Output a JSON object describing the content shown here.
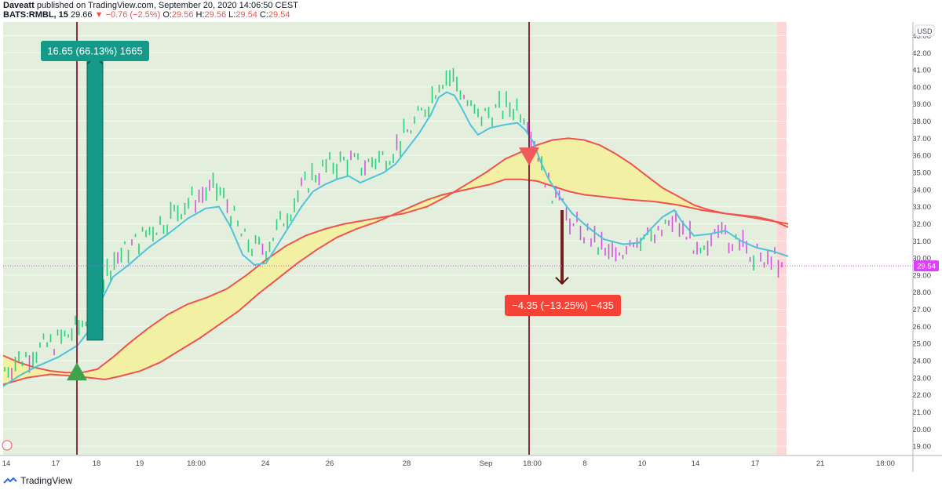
{
  "header": {
    "publisher": "Daveatt",
    "published_text": "published on TradingView.com, September 20, 2020 14:06:50 CEST",
    "symbol": "BATS:RMBL, 15",
    "last": "29.66",
    "change": "−0.76 (−2.5%)",
    "o_label": "O:",
    "o_value": "29.56",
    "h_label": "H:",
    "h_value": "29.56",
    "l_label": "L:",
    "l_value": "29.54",
    "c_label": "C:",
    "c_value": "29.54"
  },
  "brand": "TradingView",
  "colors": {
    "background_zone_long": "#e3efdc",
    "background_zone_short_end": "#ffd6d6",
    "kumo_fill": "#f5f099",
    "kumo_line": "#ef5350",
    "fast_line": "#4fc3dc",
    "up_bar": "#26d07c",
    "down_bar": "#d452e0",
    "long_label": "#159a8a",
    "short_label": "#f44336",
    "vertical_line": "#8b2b4a",
    "price_tag": "#e040fb"
  },
  "chart_data": {
    "type": "line",
    "currency": "USD",
    "ylim": [
      18.5,
      43.8
    ],
    "y_ticks": [
      "19.00",
      "20.00",
      "21.00",
      "22.00",
      "23.00",
      "24.00",
      "25.00",
      "26.00",
      "27.00",
      "28.00",
      "29.00",
      "30.00",
      "31.00",
      "32.00",
      "33.00",
      "34.00",
      "35.00",
      "36.00",
      "37.00",
      "38.00",
      "39.00",
      "40.00",
      "41.00",
      "42.00",
      "43.00"
    ],
    "x_ticks": [
      "14",
      "17",
      "18",
      "19",
      "18:00",
      "24",
      "26",
      "28",
      "Sep",
      "18:00",
      "8",
      "10",
      "14",
      "17",
      "21",
      "18:00"
    ],
    "last_price": "29.54",
    "series": [
      {
        "values": [
          [
            0,
            22.5
          ],
          [
            20,
            23.1
          ],
          [
            40,
            23.6
          ],
          [
            70,
            24.2
          ],
          [
            95,
            24.9
          ],
          [
            110,
            25.8
          ],
          [
            125,
            27.5
          ],
          [
            140,
            28.9
          ],
          [
            160,
            29.6
          ],
          [
            185,
            30.6
          ],
          [
            210,
            31.4
          ],
          [
            235,
            32.3
          ],
          [
            258,
            32.9
          ],
          [
            275,
            33.0
          ],
          [
            290,
            31.8
          ],
          [
            305,
            30.2
          ],
          [
            320,
            29.6
          ],
          [
            335,
            29.7
          ],
          [
            350,
            30.8
          ],
          [
            365,
            31.9
          ],
          [
            380,
            33.0
          ],
          [
            395,
            33.9
          ],
          [
            410,
            34.3
          ],
          [
            425,
            34.6
          ],
          [
            440,
            34.8
          ],
          [
            455,
            34.4
          ],
          [
            470,
            34.7
          ],
          [
            485,
            35.0
          ],
          [
            500,
            35.5
          ],
          [
            515,
            36.4
          ],
          [
            530,
            37.3
          ],
          [
            545,
            38.4
          ],
          [
            555,
            39.4
          ],
          [
            565,
            39.7
          ],
          [
            575,
            39.5
          ],
          [
            585,
            38.7
          ],
          [
            595,
            37.8
          ],
          [
            605,
            37.2
          ],
          [
            620,
            37.6
          ],
          [
            640,
            37.8
          ],
          [
            655,
            37.9
          ],
          [
            665,
            37.5
          ],
          [
            675,
            36.8
          ],
          [
            685,
            35.6
          ],
          [
            695,
            34.6
          ],
          [
            710,
            33.5
          ],
          [
            725,
            32.6
          ],
          [
            745,
            31.8
          ],
          [
            765,
            31.1
          ],
          [
            790,
            30.8
          ],
          [
            810,
            30.9
          ],
          [
            825,
            31.7
          ],
          [
            840,
            32.4
          ],
          [
            855,
            32.8
          ],
          [
            865,
            32.1
          ],
          [
            880,
            31.3
          ],
          [
            900,
            31.4
          ],
          [
            920,
            31.6
          ],
          [
            940,
            31.0
          ],
          [
            960,
            30.6
          ],
          [
            980,
            30.4
          ],
          [
            1000,
            30.1
          ]
        ]
      },
      {
        "values": [
          [
            0,
            22.6
          ],
          [
            30,
            23.0
          ],
          [
            60,
            23.2
          ],
          [
            90,
            23.1
          ],
          [
            110,
            23.0
          ],
          [
            130,
            22.9
          ],
          [
            150,
            23.1
          ],
          [
            175,
            23.4
          ],
          [
            200,
            23.9
          ],
          [
            225,
            24.6
          ],
          [
            250,
            25.3
          ],
          [
            275,
            26.1
          ],
          [
            300,
            26.9
          ],
          [
            325,
            27.9
          ],
          [
            350,
            28.8
          ],
          [
            375,
            29.7
          ],
          [
            400,
            30.5
          ],
          [
            425,
            31.2
          ],
          [
            450,
            31.7
          ],
          [
            475,
            32.1
          ],
          [
            500,
            32.6
          ],
          [
            520,
            33.0
          ],
          [
            540,
            33.4
          ],
          [
            560,
            33.7
          ],
          [
            580,
            33.9
          ],
          [
            600,
            34.1
          ],
          [
            620,
            34.3
          ],
          [
            640,
            34.6
          ],
          [
            660,
            34.6
          ],
          [
            680,
            34.5
          ],
          [
            700,
            34.2
          ],
          [
            720,
            33.9
          ],
          [
            740,
            33.7
          ],
          [
            760,
            33.6
          ],
          [
            780,
            33.5
          ],
          [
            800,
            33.4
          ],
          [
            830,
            33.3
          ],
          [
            860,
            33.1
          ],
          [
            890,
            32.8
          ],
          [
            920,
            32.6
          ],
          [
            950,
            32.4
          ],
          [
            975,
            32.2
          ],
          [
            1000,
            32.0
          ]
        ]
      },
      {
        "values": [
          [
            0,
            24.3
          ],
          [
            20,
            23.9
          ],
          [
            40,
            23.6
          ],
          [
            60,
            23.4
          ],
          [
            80,
            23.3
          ],
          [
            100,
            23.3
          ],
          [
            120,
            23.5
          ],
          [
            140,
            24.2
          ],
          [
            160,
            25.0
          ],
          [
            185,
            25.9
          ],
          [
            210,
            26.7
          ],
          [
            235,
            27.3
          ],
          [
            260,
            27.7
          ],
          [
            285,
            28.2
          ],
          [
            310,
            29.0
          ],
          [
            335,
            29.9
          ],
          [
            360,
            30.7
          ],
          [
            385,
            31.3
          ],
          [
            410,
            31.7
          ],
          [
            435,
            32.0
          ],
          [
            460,
            32.2
          ],
          [
            485,
            32.4
          ],
          [
            510,
            32.6
          ],
          [
            540,
            33.0
          ],
          [
            565,
            33.6
          ],
          [
            590,
            34.3
          ],
          [
            615,
            35.0
          ],
          [
            640,
            35.8
          ],
          [
            660,
            36.2
          ],
          [
            680,
            36.6
          ],
          [
            700,
            36.9
          ],
          [
            720,
            37.0
          ],
          [
            740,
            36.9
          ],
          [
            760,
            36.6
          ],
          [
            780,
            36.1
          ],
          [
            800,
            35.5
          ],
          [
            820,
            34.8
          ],
          [
            840,
            34.1
          ],
          [
            860,
            33.6
          ],
          [
            880,
            33.1
          ],
          [
            900,
            32.8
          ],
          [
            920,
            32.6
          ],
          [
            940,
            32.5
          ],
          [
            960,
            32.4
          ],
          [
            980,
            32.2
          ],
          [
            1000,
            31.8
          ]
        ]
      }
    ],
    "trades": [
      {
        "type": "long",
        "label": "16.65 (66.13%) 1665",
        "entry": 25.2,
        "exit": 41.8
      },
      {
        "type": "short",
        "label": "−4.35 (−13.25%) −435",
        "entry": 32.8,
        "exit": 28.5
      }
    ],
    "entry_markers": [
      {
        "direction": "buy",
        "price": 23.3
      },
      {
        "direction": "sell",
        "price": 36.0
      }
    ]
  }
}
